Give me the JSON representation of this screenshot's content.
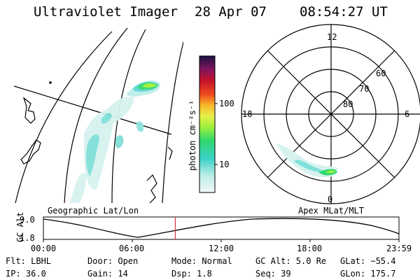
{
  "header": {
    "instrument": "Ultraviolet Imager",
    "date": "28 Apr 07",
    "time": "08:54:27 UT"
  },
  "colorbar": {
    "unit_label": "photon cm⁻²s⁻¹",
    "ticks": [
      "100",
      "10"
    ]
  },
  "polar_plot": {
    "mlt_labels": [
      "12",
      "18",
      "6",
      "0"
    ],
    "mlat_labels": [
      "60",
      "70",
      "80"
    ]
  },
  "altitude_plot": {
    "ylabel": "GC Alt",
    "yticks": [
      "9.0",
      "1.8"
    ],
    "left_title": "Geographic Lat/Lon",
    "right_title": "Apex  MLat/MLT",
    "xticks": [
      "00:00",
      "06:00",
      "12:00",
      "18:00",
      "23:59"
    ],
    "current_time_fraction": 0.371
  },
  "footer": {
    "filter": "Flt: LBHL",
    "ip": "IP: 36.0",
    "door": "Door: Open",
    "gain": "Gain: 14",
    "mode": "Mode: Normal",
    "dsp": "Dsp:    1.8",
    "gc_alt": "GC Alt: 5.0 Re",
    "seq": "Seq: 39",
    "glat": "GLat:  −55.4",
    "glon": "GLon: 175.7"
  },
  "colors": {
    "aurora_low": "#5fd9d2",
    "aurora_mid": "#2fd86f",
    "aurora_high": "#9ef03a",
    "marker": "#d8343c"
  }
}
